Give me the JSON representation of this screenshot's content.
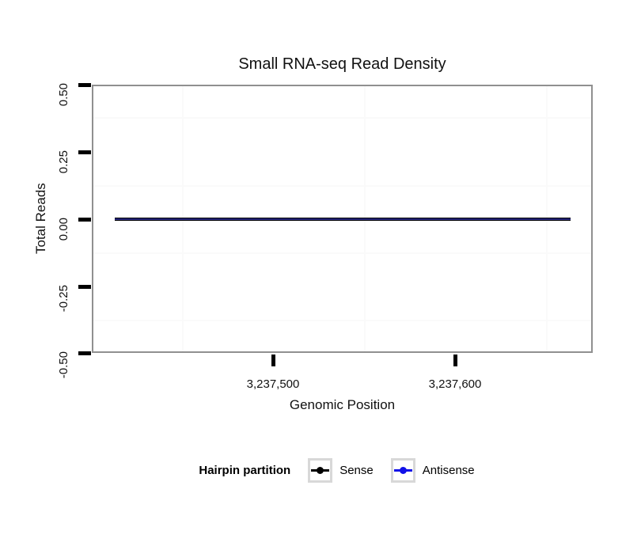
{
  "title": "Small RNA-seq Read Density",
  "y_axis": {
    "label": "Total Reads",
    "ticks": [
      "0.50",
      "0.25",
      "0.00",
      "-0.25",
      "-0.50"
    ]
  },
  "x_axis": {
    "label": "Genomic Position",
    "ticks": [
      "3,237,500",
      "3,237,600"
    ]
  },
  "legend": {
    "title": "Hairpin partition",
    "items": [
      {
        "label": "Sense",
        "color": "#000000"
      },
      {
        "label": "Antisense",
        "color": "#1111e8"
      }
    ]
  },
  "colors": {
    "panel_border": "#909090",
    "tick": "#000000",
    "minor_grid": "#fafafa",
    "sense": "#000000",
    "antisense": "#1111e8"
  },
  "chart_data": {
    "type": "line",
    "title": "Small RNA-seq Read Density",
    "xlabel": "Genomic Position",
    "ylabel": "Total Reads",
    "xlim": [
      3237400,
      3237676
    ],
    "ylim": [
      -0.5,
      0.5
    ],
    "x_ticks": [
      3237500,
      3237600
    ],
    "y_ticks": [
      0.5,
      0.25,
      0.0,
      -0.25,
      -0.5
    ],
    "grid": "minor-only",
    "legend_title": "Hairpin partition",
    "legend_position": "bottom",
    "series": [
      {
        "name": "Sense",
        "color": "#000000",
        "x": [
          3237413,
          3237663
        ],
        "y": [
          0,
          0
        ]
      },
      {
        "name": "Antisense",
        "color": "#1111e8",
        "x": [
          3237413,
          3237663
        ],
        "y": [
          0,
          0
        ]
      }
    ]
  }
}
